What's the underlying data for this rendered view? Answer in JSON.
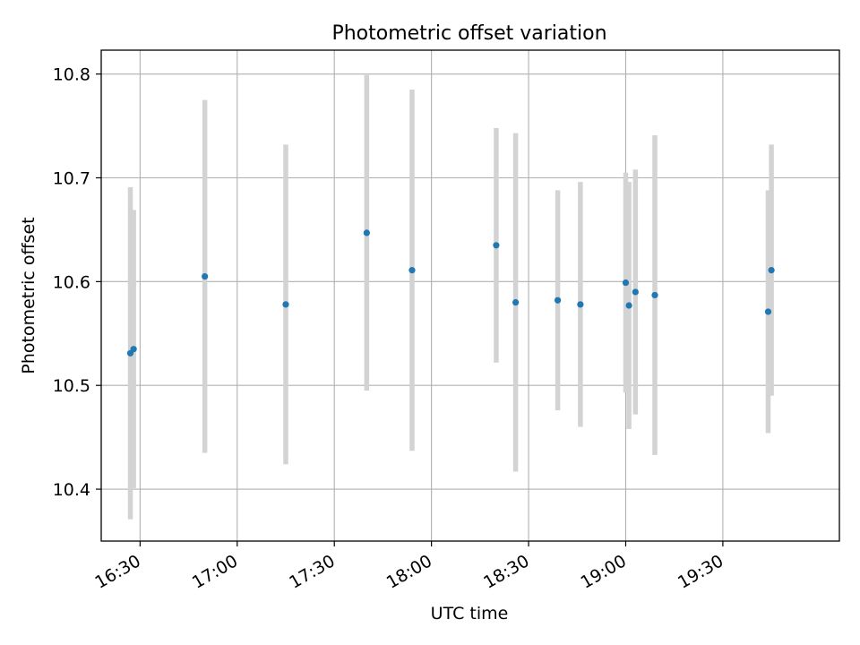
{
  "chart_data": {
    "type": "scatter",
    "title": "Photometric offset variation",
    "xlabel": "UTC time",
    "ylabel": "Photometric offset",
    "x_ticks": [
      "16:30",
      "17:00",
      "17:30",
      "18:00",
      "18:30",
      "19:00",
      "19:30"
    ],
    "y_ticks": [
      "10.4",
      "10.5",
      "10.6",
      "10.7",
      "10.8"
    ],
    "xlim": [
      "16:18",
      "20:06"
    ],
    "ylim": [
      10.35,
      10.823
    ],
    "grid": true,
    "colors": {
      "points": "#1f77b4",
      "errorbars": "#d3d3d3",
      "grid": "#b0b0b0"
    },
    "points": [
      {
        "time": "16:27",
        "value": 10.531,
        "low": 10.371,
        "high": 10.691
      },
      {
        "time": "16:28",
        "value": 10.535,
        "low": 10.401,
        "high": 10.669
      },
      {
        "time": "16:50",
        "value": 10.605,
        "low": 10.435,
        "high": 10.775
      },
      {
        "time": "17:15",
        "value": 10.578,
        "low": 10.424,
        "high": 10.732
      },
      {
        "time": "17:40",
        "value": 10.647,
        "low": 10.495,
        "high": 10.799
      },
      {
        "time": "17:54",
        "value": 10.611,
        "low": 10.437,
        "high": 10.785
      },
      {
        "time": "18:20",
        "value": 10.635,
        "low": 10.522,
        "high": 10.748
      },
      {
        "time": "18:26",
        "value": 10.58,
        "low": 10.417,
        "high": 10.743
      },
      {
        "time": "18:39",
        "value": 10.582,
        "low": 10.476,
        "high": 10.688
      },
      {
        "time": "18:46",
        "value": 10.578,
        "low": 10.46,
        "high": 10.696
      },
      {
        "time": "19:00",
        "value": 10.599,
        "low": 10.493,
        "high": 10.705
      },
      {
        "time": "19:01",
        "value": 10.577,
        "low": 10.458,
        "high": 10.696
      },
      {
        "time": "19:03",
        "value": 10.59,
        "low": 10.472,
        "high": 10.708
      },
      {
        "time": "19:09",
        "value": 10.587,
        "low": 10.433,
        "high": 10.741
      },
      {
        "time": "19:44",
        "value": 10.571,
        "low": 10.454,
        "high": 10.688
      },
      {
        "time": "19:45",
        "value": 10.611,
        "low": 10.49,
        "high": 10.732
      }
    ]
  }
}
